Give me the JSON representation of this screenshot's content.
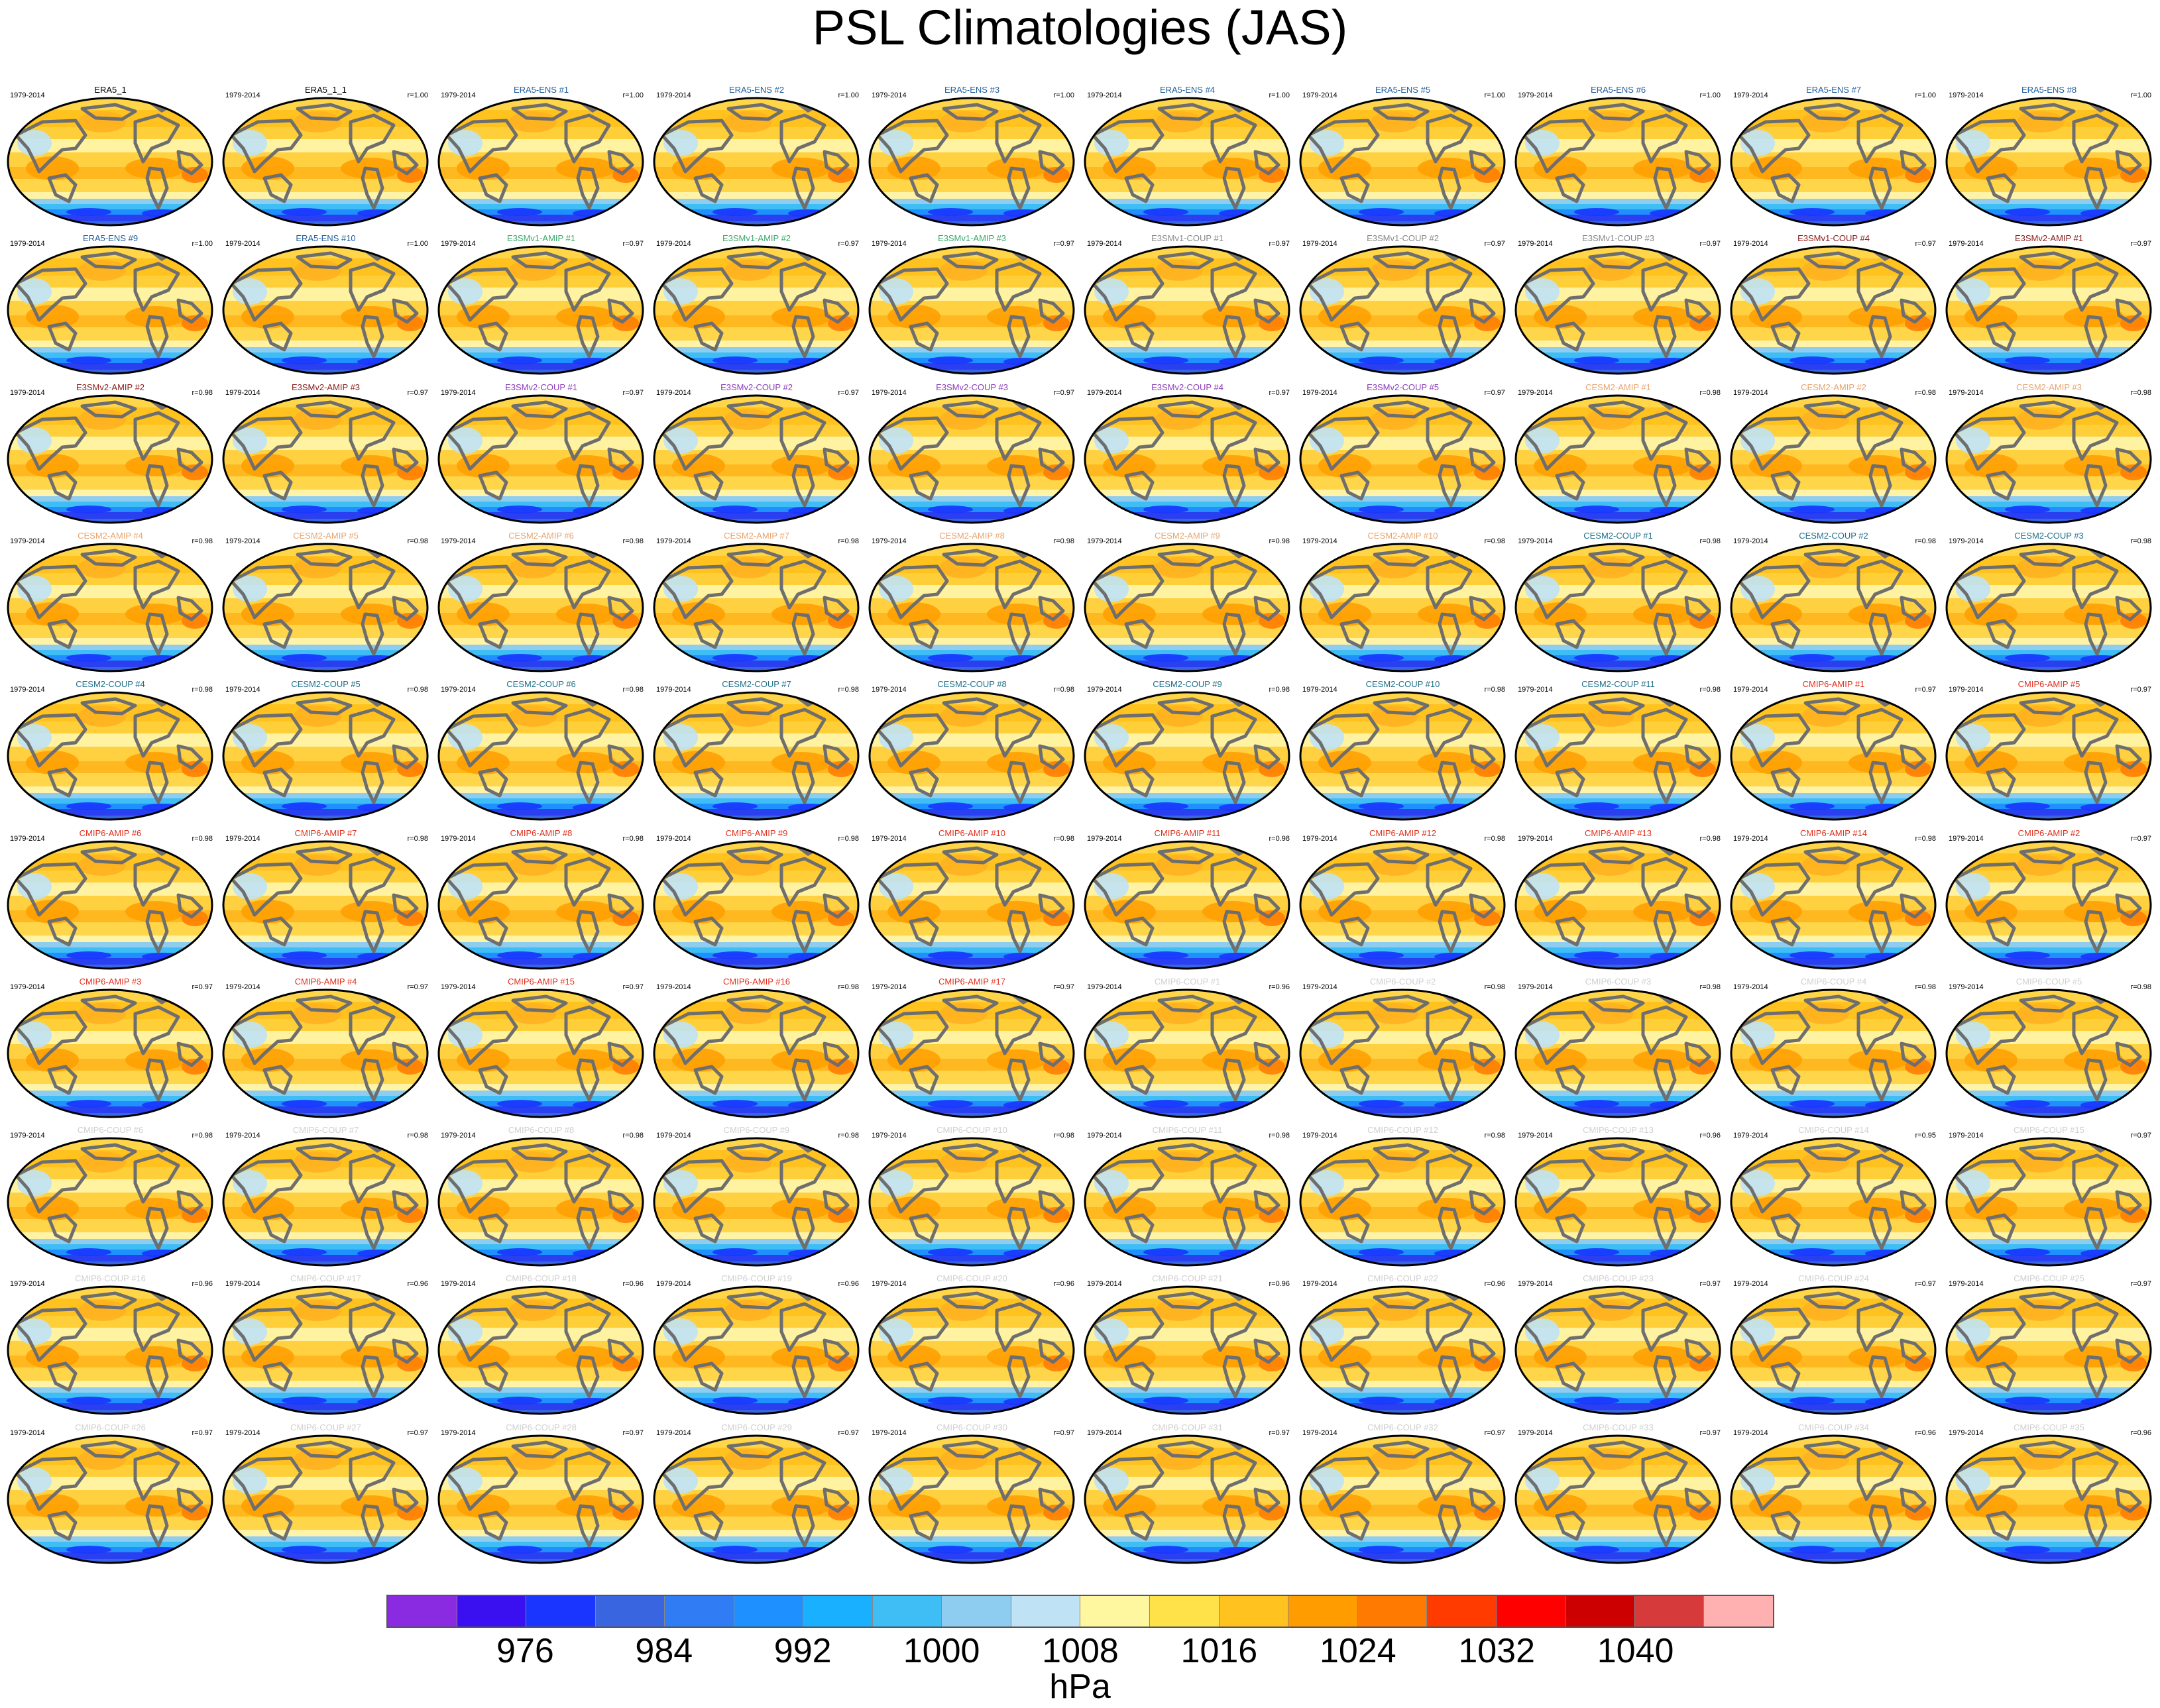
{
  "chart_data": {
    "type": "map-panel-grid",
    "title": "PSL Climatologies (JAS)",
    "units": "hPa",
    "period": "1979-2014",
    "colorbar": {
      "colors": [
        "#8a2be2",
        "#3a10f0",
        "#1a35ff",
        "#3a65e0",
        "#2f7cf5",
        "#1f90ff",
        "#18b0ff",
        "#3fbef5",
        "#8ecdf0",
        "#bfe2f5",
        "#fff6a0",
        "#ffe14a",
        "#ffc21e",
        "#ff9d00",
        "#ff7a00",
        "#ff3b00",
        "#ff0000",
        "#cc0000",
        "#d63a3a",
        "#ffb0b0"
      ],
      "tick_values": [
        "976",
        "984",
        "992",
        "1000",
        "1008",
        "1016",
        "1024",
        "1032",
        "1040"
      ]
    },
    "panels": [
      {
        "name": "ERA5_1",
        "r": "",
        "color": "#000000"
      },
      {
        "name": "ERA5_1_1",
        "r": "r=1.00",
        "color": "#000000"
      },
      {
        "name": "ERA5-ENS   #1",
        "r": "r=1.00",
        "color": "#1f5fa0"
      },
      {
        "name": "ERA5-ENS   #2",
        "r": "r=1.00",
        "color": "#1f5fa0"
      },
      {
        "name": "ERA5-ENS   #3",
        "r": "r=1.00",
        "color": "#1f5fa0"
      },
      {
        "name": "ERA5-ENS   #4",
        "r": "r=1.00",
        "color": "#1f5fa0"
      },
      {
        "name": "ERA5-ENS   #5",
        "r": "r=1.00",
        "color": "#1f5fa0"
      },
      {
        "name": "ERA5-ENS   #6",
        "r": "r=1.00",
        "color": "#1f5fa0"
      },
      {
        "name": "ERA5-ENS   #7",
        "r": "r=1.00",
        "color": "#1f5fa0"
      },
      {
        "name": "ERA5-ENS   #8",
        "r": "r=1.00",
        "color": "#1f5fa0"
      },
      {
        "name": "ERA5-ENS   #9",
        "r": "r=1.00",
        "color": "#1f5fa0"
      },
      {
        "name": "ERA5-ENS   #10",
        "r": "r=1.00",
        "color": "#1f5fa0"
      },
      {
        "name": "E3SMv1-AMIP #1",
        "r": "r=0.97",
        "color": "#3aa86b"
      },
      {
        "name": "E3SMv1-AMIP #2",
        "r": "r=0.97",
        "color": "#3aa86b"
      },
      {
        "name": "E3SMv1-AMIP #3",
        "r": "r=0.97",
        "color": "#3aa86b"
      },
      {
        "name": "E3SMv1-COUP #1",
        "r": "r=0.97",
        "color": "#888888"
      },
      {
        "name": "E3SMv1-COUP #2",
        "r": "r=0.97",
        "color": "#888888"
      },
      {
        "name": "E3SMv1-COUP #3",
        "r": "r=0.97",
        "color": "#888888"
      },
      {
        "name": "E3SMv1-COUP #4",
        "r": "r=0.97",
        "color": "#8b1a1a"
      },
      {
        "name": "E3SMv2-AMIP #1",
        "r": "r=0.97",
        "color": "#8b1a1a"
      },
      {
        "name": "E3SMv2-AMIP #2",
        "r": "r=0.98",
        "color": "#8b1a1a"
      },
      {
        "name": "E3SMv2-AMIP #3",
        "r": "r=0.97",
        "color": "#8b1a1a"
      },
      {
        "name": "E3SMv2-COUP #1",
        "r": "r=0.97",
        "color": "#8a3ab9"
      },
      {
        "name": "E3SMv2-COUP #2",
        "r": "r=0.97",
        "color": "#8a3ab9"
      },
      {
        "name": "E3SMv2-COUP #3",
        "r": "r=0.97",
        "color": "#8a3ab9"
      },
      {
        "name": "E3SMv2-COUP #4",
        "r": "r=0.97",
        "color": "#8a3ab9"
      },
      {
        "name": "E3SMv2-COUP #5",
        "r": "r=0.97",
        "color": "#8a3ab9"
      },
      {
        "name": "CESM2-AMIP #1",
        "r": "r=0.98",
        "color": "#e8a46e"
      },
      {
        "name": "CESM2-AMIP #2",
        "r": "r=0.98",
        "color": "#e8a46e"
      },
      {
        "name": "CESM2-AMIP #3",
        "r": "r=0.98",
        "color": "#e8a46e"
      },
      {
        "name": "CESM2-AMIP #4",
        "r": "r=0.98",
        "color": "#e8a46e"
      },
      {
        "name": "CESM2-AMIP #5",
        "r": "r=0.98",
        "color": "#e8a46e"
      },
      {
        "name": "CESM2-AMIP #6",
        "r": "r=0.98",
        "color": "#e8a46e"
      },
      {
        "name": "CESM2-AMIP #7",
        "r": "r=0.98",
        "color": "#e8a46e"
      },
      {
        "name": "CESM2-AMIP #8",
        "r": "r=0.98",
        "color": "#e8a46e"
      },
      {
        "name": "CESM2-AMIP #9",
        "r": "r=0.98",
        "color": "#e8a46e"
      },
      {
        "name": "CESM2-AMIP #10",
        "r": "r=0.98",
        "color": "#e8a46e"
      },
      {
        "name": "CESM2-COUP #1",
        "r": "r=0.98",
        "color": "#1f6f8b"
      },
      {
        "name": "CESM2-COUP #2",
        "r": "r=0.98",
        "color": "#1f6f8b"
      },
      {
        "name": "CESM2-COUP #3",
        "r": "r=0.98",
        "color": "#1f6f8b"
      },
      {
        "name": "CESM2-COUP #4",
        "r": "r=0.98",
        "color": "#1f6f8b"
      },
      {
        "name": "CESM2-COUP #5",
        "r": "r=0.98",
        "color": "#1f6f8b"
      },
      {
        "name": "CESM2-COUP #6",
        "r": "r=0.98",
        "color": "#1f6f8b"
      },
      {
        "name": "CESM2-COUP #7",
        "r": "r=0.98",
        "color": "#1f6f8b"
      },
      {
        "name": "CESM2-COUP #8",
        "r": "r=0.98",
        "color": "#1f6f8b"
      },
      {
        "name": "CESM2-COUP #9",
        "r": "r=0.98",
        "color": "#1f6f8b"
      },
      {
        "name": "CESM2-COUP #10",
        "r": "r=0.98",
        "color": "#1f6f8b"
      },
      {
        "name": "CESM2-COUP #11",
        "r": "r=0.98",
        "color": "#1f6f8b"
      },
      {
        "name": "CMIP6-AMIP #1",
        "r": "r=0.97",
        "color": "#e0301e"
      },
      {
        "name": "CMIP6-AMIP #5",
        "r": "r=0.97",
        "color": "#e0301e"
      },
      {
        "name": "CMIP6-AMIP #6",
        "r": "r=0.98",
        "color": "#e0301e"
      },
      {
        "name": "CMIP6-AMIP #7",
        "r": "r=0.98",
        "color": "#e0301e"
      },
      {
        "name": "CMIP6-AMIP #8",
        "r": "r=0.98",
        "color": "#e0301e"
      },
      {
        "name": "CMIP6-AMIP #9",
        "r": "r=0.98",
        "color": "#e0301e"
      },
      {
        "name": "CMIP6-AMIP #10",
        "r": "r=0.98",
        "color": "#e0301e"
      },
      {
        "name": "CMIP6-AMIP #11",
        "r": "r=0.98",
        "color": "#e0301e"
      },
      {
        "name": "CMIP6-AMIP #12",
        "r": "r=0.98",
        "color": "#e0301e"
      },
      {
        "name": "CMIP6-AMIP #13",
        "r": "r=0.98",
        "color": "#e0301e"
      },
      {
        "name": "CMIP6-AMIP #14",
        "r": "r=0.98",
        "color": "#e0301e"
      },
      {
        "name": "CMIP6-AMIP #2",
        "r": "r=0.97",
        "color": "#e0301e"
      },
      {
        "name": "CMIP6-AMIP #3",
        "r": "r=0.97",
        "color": "#e0301e"
      },
      {
        "name": "CMIP6-AMIP #4",
        "r": "r=0.97",
        "color": "#e0301e"
      },
      {
        "name": "CMIP6-AMIP #15",
        "r": "r=0.97",
        "color": "#e0301e"
      },
      {
        "name": "CMIP6-AMIP #16",
        "r": "r=0.98",
        "color": "#e0301e"
      },
      {
        "name": "CMIP6-AMIP #17",
        "r": "r=0.97",
        "color": "#e0301e"
      },
      {
        "name": "CMIP6-COUP #1",
        "r": "r=0.96",
        "color": "#d0d0d0"
      },
      {
        "name": "CMIP6-COUP #2",
        "r": "r=0.98",
        "color": "#d0d0d0"
      },
      {
        "name": "CMIP6-COUP #3",
        "r": "r=0.98",
        "color": "#d0d0d0"
      },
      {
        "name": "CMIP6-COUP #4",
        "r": "r=0.98",
        "color": "#d0d0d0"
      },
      {
        "name": "CMIP6-COUP #5",
        "r": "r=0.98",
        "color": "#d0d0d0"
      },
      {
        "name": "CMIP6-COUP #6",
        "r": "r=0.98",
        "color": "#d0d0d0"
      },
      {
        "name": "CMIP6-COUP #7",
        "r": "r=0.98",
        "color": "#d0d0d0"
      },
      {
        "name": "CMIP6-COUP #8",
        "r": "r=0.98",
        "color": "#d0d0d0"
      },
      {
        "name": "CMIP6-COUP #9",
        "r": "r=0.98",
        "color": "#d0d0d0"
      },
      {
        "name": "CMIP6-COUP #10",
        "r": "r=0.98",
        "color": "#d0d0d0"
      },
      {
        "name": "CMIP6-COUP #11",
        "r": "r=0.98",
        "color": "#d0d0d0"
      },
      {
        "name": "CMIP6-COUP #12",
        "r": "r=0.98",
        "color": "#d0d0d0"
      },
      {
        "name": "CMIP6-COUP #13",
        "r": "r=0.96",
        "color": "#d0d0d0"
      },
      {
        "name": "CMIP6-COUP #14",
        "r": "r=0.95",
        "color": "#d0d0d0"
      },
      {
        "name": "CMIP6-COUP #15",
        "r": "r=0.97",
        "color": "#d0d0d0"
      },
      {
        "name": "CMIP6-COUP #16",
        "r": "r=0.96",
        "color": "#d0d0d0"
      },
      {
        "name": "CMIP6-COUP #17",
        "r": "r=0.96",
        "color": "#d0d0d0"
      },
      {
        "name": "CMIP6-COUP #18",
        "r": "r=0.96",
        "color": "#d0d0d0"
      },
      {
        "name": "CMIP6-COUP #19",
        "r": "r=0.96",
        "color": "#d0d0d0"
      },
      {
        "name": "CMIP6-COUP #20",
        "r": "r=0.96",
        "color": "#d0d0d0"
      },
      {
        "name": "CMIP6-COUP #21",
        "r": "r=0.96",
        "color": "#d0d0d0"
      },
      {
        "name": "CMIP6-COUP #22",
        "r": "r=0.96",
        "color": "#d0d0d0"
      },
      {
        "name": "CMIP6-COUP #23",
        "r": "r=0.97",
        "color": "#d0d0d0"
      },
      {
        "name": "CMIP6-COUP #24",
        "r": "r=0.97",
        "color": "#d0d0d0"
      },
      {
        "name": "CMIP6-COUP #25",
        "r": "r=0.97",
        "color": "#d0d0d0"
      },
      {
        "name": "CMIP6-COUP #26",
        "r": "r=0.97",
        "color": "#d0d0d0"
      },
      {
        "name": "CMIP6-COUP #27",
        "r": "r=0.97",
        "color": "#d0d0d0"
      },
      {
        "name": "CMIP6-COUP #28",
        "r": "r=0.97",
        "color": "#d0d0d0"
      },
      {
        "name": "CMIP6-COUP #29",
        "r": "r=0.97",
        "color": "#d0d0d0"
      },
      {
        "name": "CMIP6-COUP #30",
        "r": "r=0.97",
        "color": "#d0d0d0"
      },
      {
        "name": "CMIP6-COUP #31",
        "r": "r=0.97",
        "color": "#d0d0d0"
      },
      {
        "name": "CMIP6-COUP #32",
        "r": "r=0.97",
        "color": "#d0d0d0"
      },
      {
        "name": "CMIP6-COUP #33",
        "r": "r=0.97",
        "color": "#d0d0d0"
      },
      {
        "name": "CMIP6-COUP #34",
        "r": "r=0.96",
        "color": "#d0d0d0"
      },
      {
        "name": "CMIP6-COUP #35",
        "r": "r=0.96",
        "color": "#d0d0d0"
      }
    ]
  }
}
